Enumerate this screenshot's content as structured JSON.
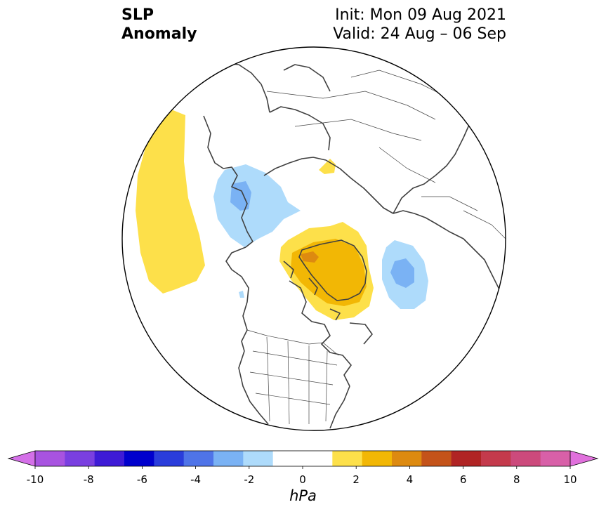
{
  "title": {
    "line1": "SLP",
    "line2": "Anomaly"
  },
  "run": {
    "init": "Init: Mon 09 Aug 2021",
    "valid": "Valid: 24 Aug – 06 Sep"
  },
  "colorbar": {
    "unit": "hPa",
    "ticks": [
      "-10",
      "-8",
      "-6",
      "-4",
      "-2",
      "0",
      "2",
      "4",
      "6",
      "8",
      "10"
    ],
    "colors": [
      "#a853e0",
      "#7a3fe0",
      "#3e1bd6",
      "#0000cd",
      "#2a3ddb",
      "#4f74e8",
      "#7ab2f4",
      "#aedbfb",
      "#ffffff",
      "#ffffff",
      "#fde04a",
      "#f2b705",
      "#dd8a10",
      "#c4531a",
      "#b02424",
      "#c43a4c",
      "#cc4a7c",
      "#d860a8"
    ],
    "under_color": "#d470e8",
    "over_color": "#e070dc"
  },
  "anomalies": [
    {
      "name": "north-pacific-high",
      "level_hpa": 1.5,
      "color": "#fde04a"
    },
    {
      "name": "canada-low",
      "level_hpa": -1.5,
      "color": "#aedbfb"
    },
    {
      "name": "canada-low-core",
      "level_hpa": -2.5,
      "color": "#7ab2f4"
    },
    {
      "name": "greenland-high",
      "level_hpa": 1.5,
      "color": "#fde04a"
    },
    {
      "name": "greenland-high-inner",
      "level_hpa": 2.5,
      "color": "#f2b705"
    },
    {
      "name": "greenland-high-core",
      "level_hpa": 3.5,
      "color": "#dd8a10"
    },
    {
      "name": "north-atlantic-low",
      "level_hpa": -1.5,
      "color": "#aedbfb"
    },
    {
      "name": "north-atlantic-low-core",
      "level_hpa": -2.5,
      "color": "#7ab2f4"
    },
    {
      "name": "siberia-high",
      "level_hpa": 1.5,
      "color": "#fde04a"
    }
  ]
}
